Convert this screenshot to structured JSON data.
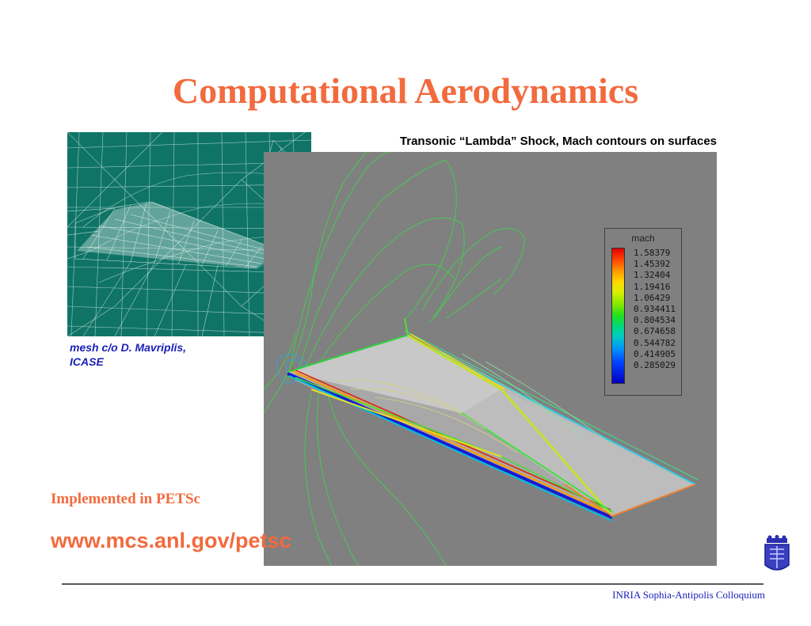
{
  "slide": {
    "title": "Computational Aerodynamics",
    "mesh_caption_line1": "mesh c/o D. Mavriplis,",
    "mesh_caption_line2": "ICASE",
    "sim_caption": "Transonic “Lambda” Shock, Mach contours on surfaces",
    "implemented": "Implemented in PETSc",
    "url": "www.mcs.anl.gov/petsc",
    "footer": "INRIA Sophia-Antipolis Colloquium"
  },
  "legend": {
    "title": "mach",
    "values": [
      "1.58379",
      "1.45392",
      "1.32404",
      "1.19416",
      "1.06429",
      "0.934411",
      "0.804534",
      "0.674658",
      "0.544782",
      "0.414905",
      "0.285029"
    ]
  },
  "colors": {
    "accent": "#f26a3d",
    "caption_blue": "#1a1fb8",
    "mesh_bg": "#0f7466",
    "sim_bg": "#808080"
  }
}
